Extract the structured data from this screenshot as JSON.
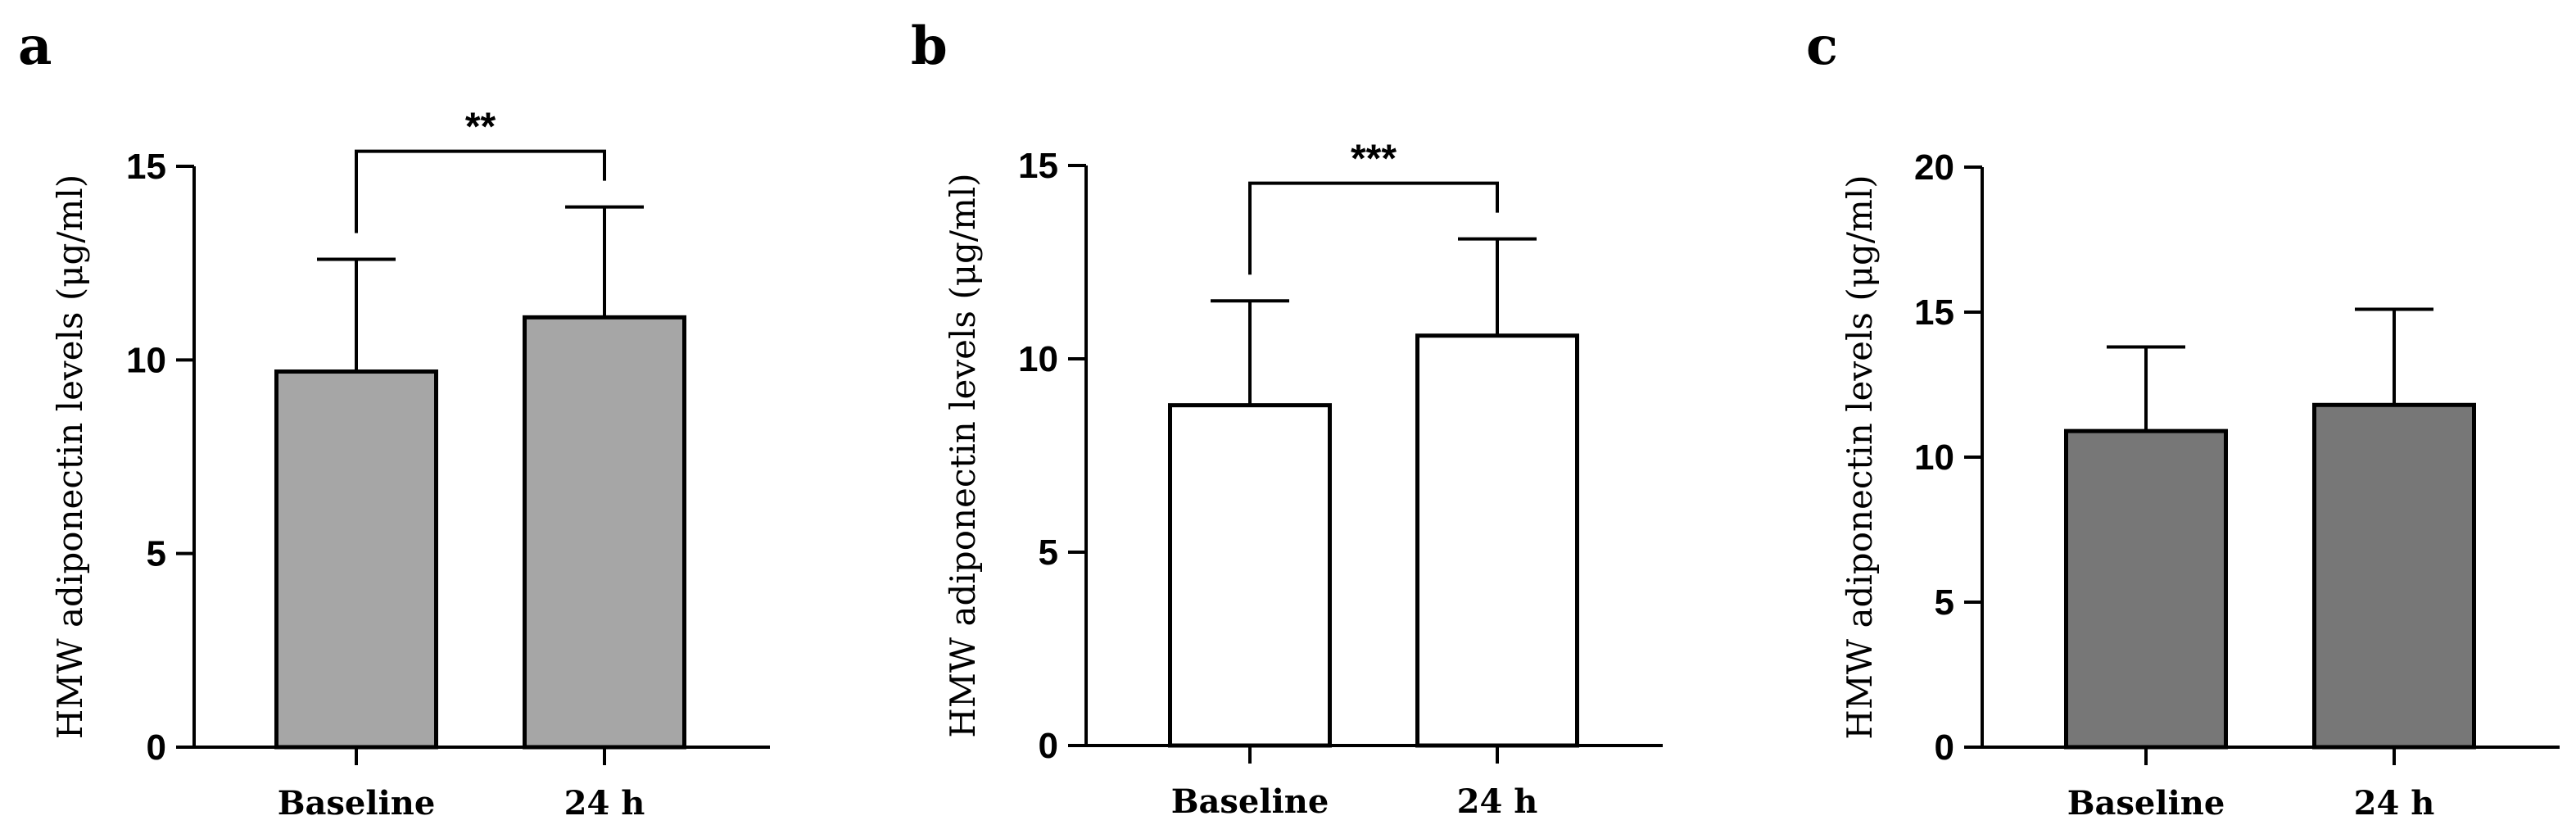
{
  "chart_data": [
    {
      "panel": "a",
      "type": "bar",
      "categories": [
        "Baseline",
        "24 h"
      ],
      "values": [
        9.7,
        11.1
      ],
      "errors": [
        2.9,
        2.85
      ],
      "ylabel": "HMW adiponectin levels (μg/ml)",
      "xlabel": "",
      "ylim": [
        0,
        15
      ],
      "yticks": [
        0,
        5,
        10,
        15
      ],
      "bar_color": "#a6a6a6",
      "significance": "**",
      "grid": false
    },
    {
      "panel": "b",
      "type": "bar",
      "categories": [
        "Baseline",
        "24 h"
      ],
      "values": [
        8.8,
        10.6
      ],
      "errors": [
        2.7,
        2.5
      ],
      "ylabel": "HMW adiponectin levels (μg/ml)",
      "xlabel": "",
      "ylim": [
        0,
        15
      ],
      "yticks": [
        0,
        5,
        10,
        15
      ],
      "bar_color": "#ffffff",
      "significance": "***",
      "grid": false
    },
    {
      "panel": "c",
      "type": "bar",
      "categories": [
        "Baseline",
        "24 h"
      ],
      "values": [
        10.9,
        11.8
      ],
      "errors": [
        2.9,
        3.3
      ],
      "ylabel": "HMW adiponectin levels (μg/ml)",
      "xlabel": "",
      "ylim": [
        0,
        20
      ],
      "yticks": [
        0,
        5,
        10,
        15,
        20
      ],
      "bar_color": "#777777",
      "significance": "",
      "grid": false
    }
  ]
}
